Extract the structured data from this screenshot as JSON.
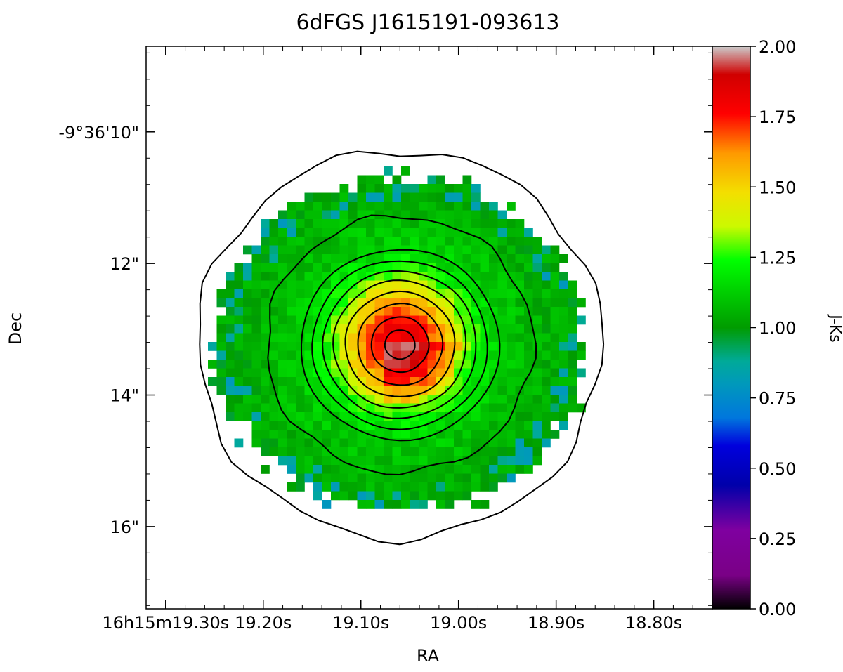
{
  "chart_data": {
    "type": "heatmap",
    "title": "6dFGS J1615191-093613",
    "xlabel": "RA",
    "ylabel": "Dec",
    "colorbar_label": "J-Ks",
    "colorbar_range": [
      0.0,
      2.0
    ],
    "colorbar_ticks": [
      "0.00",
      "0.25",
      "0.50",
      "0.75",
      "1.00",
      "1.25",
      "1.50",
      "1.75",
      "2.00"
    ],
    "colormap": "nipy_spectral",
    "x_ticks": [
      {
        "label": "16h15m19.30s",
        "ra_s": 19.3
      },
      {
        "label": "19.20s",
        "ra_s": 19.2
      },
      {
        "label": "19.10s",
        "ra_s": 19.1
      },
      {
        "label": "19.00s",
        "ra_s": 19.0
      },
      {
        "label": "18.90s",
        "ra_s": 18.9
      },
      {
        "label": "18.80s",
        "ra_s": 18.8
      }
    ],
    "y_ticks": [
      {
        "label": "-9°36'10\"",
        "dec_arcsec": 10
      },
      {
        "label": "12\"",
        "dec_arcsec": 12
      },
      {
        "label": "14\"",
        "dec_arcsec": 14
      },
      {
        "label": "16\"",
        "dec_arcsec": 16
      }
    ],
    "x_range_ra_s": [
      19.32,
      18.74
    ],
    "y_range_dec_arcsec": [
      8.7,
      17.25
    ],
    "center": {
      "ra_s": 19.06,
      "dec_arcsec": 13.2
    },
    "color_profile": [
      {
        "r_arcsec": 0.0,
        "value": 1.82
      },
      {
        "r_arcsec": 0.35,
        "value": 1.78
      },
      {
        "r_arcsec": 0.6,
        "value": 1.6
      },
      {
        "r_arcsec": 0.85,
        "value": 1.42
      },
      {
        "r_arcsec": 1.1,
        "value": 1.25
      },
      {
        "r_arcsec": 1.5,
        "value": 1.12
      },
      {
        "r_arcsec": 2.2,
        "value": 1.05
      },
      {
        "r_arcsec": 3.2,
        "value": 1.0
      }
    ],
    "contour_radii_arcsec": [
      0.22,
      0.42,
      0.62,
      0.8,
      0.97,
      1.12,
      1.28,
      1.45,
      1.95,
      2.95
    ]
  }
}
